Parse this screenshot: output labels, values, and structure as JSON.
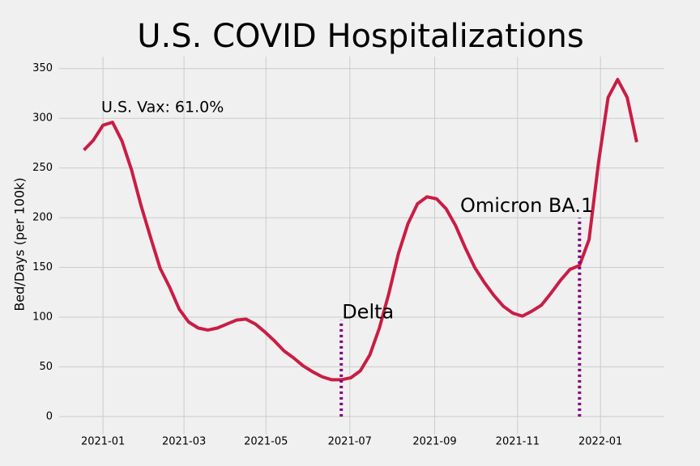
{
  "chart_data": {
    "type": "line",
    "title": "U.S. COVID Hospitalizations",
    "ylabel": "Bed/Days (per 100k)",
    "annotation": "U.S. Vax: 61.0%",
    "series": [
      {
        "name": "Hospitalizations",
        "color": "#c91d45",
        "values": [
          268,
          278,
          293,
          296,
          277,
          248,
          212,
          180,
          149,
          130,
          108,
          95,
          89,
          87,
          89,
          93,
          97,
          98,
          93,
          85,
          76,
          66,
          59,
          51,
          45,
          40,
          37,
          37,
          39,
          46,
          62,
          89,
          124,
          164,
          194,
          214,
          221,
          219,
          209,
          192,
          170,
          150,
          135,
          122,
          111,
          104,
          101,
          106,
          112,
          124,
          137,
          148,
          152,
          178,
          256,
          321,
          339,
          321,
          276
        ]
      }
    ],
    "markers": [
      {
        "label": "Delta",
        "x": 27,
        "y": 97,
        "color": "#800080"
      },
      {
        "label": "Omicron BA.1",
        "x": 52,
        "y": 200,
        "color": "#800080"
      }
    ],
    "xlim": [
      -2.6,
      60.9
    ],
    "ylim": [
      -18,
      362
    ],
    "xticks": [
      {
        "value": 2,
        "label": "2021-01"
      },
      {
        "value": 10.5,
        "label": "2021-03"
      },
      {
        "value": 19.1,
        "label": "2021-05"
      },
      {
        "value": 27.9,
        "label": "2021-07"
      },
      {
        "value": 36.8,
        "label": "2021-09"
      },
      {
        "value": 45.5,
        "label": "2021-11"
      },
      {
        "value": 54.2,
        "label": "2022-01"
      }
    ],
    "yticks": [
      0,
      50,
      100,
      150,
      200,
      250,
      300,
      350
    ],
    "grid": true
  }
}
